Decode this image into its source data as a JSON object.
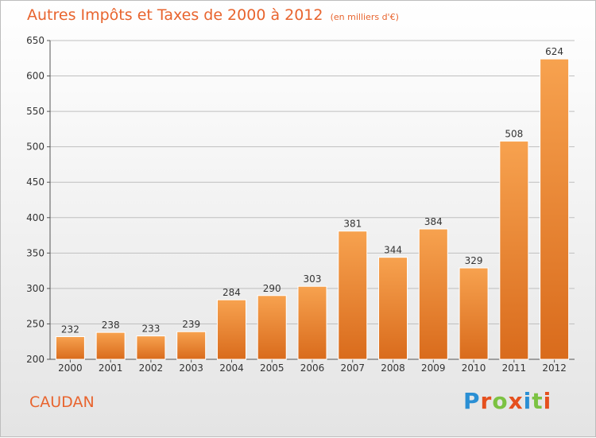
{
  "header": {
    "title": "Autres Impôts et Taxes de 2000 à 2012",
    "subtitle": "(en milliers d'€)"
  },
  "footer": {
    "town": "CAUDAN",
    "logo_text": "Proxiti",
    "logo_letters": [
      "P",
      "r",
      "o",
      "x",
      "i",
      "t",
      "i"
    ],
    "logo_colors": [
      "#2a8fd4",
      "#e5501e",
      "#7cc242",
      "#e5501e",
      "#2a8fd4",
      "#7cc242",
      "#e5501e"
    ]
  },
  "colors": {
    "bar_top": "#f7a24f",
    "bar_bottom": "#d96b1c",
    "accent": "#e8642e",
    "grid": "#bfbfbf",
    "text": "#333333"
  },
  "chart_data": {
    "type": "bar",
    "title": "Autres Impôts et Taxes de 2000 à 2012",
    "subtitle": "(en milliers d'€)",
    "xlabel": "",
    "ylabel": "",
    "categories": [
      "2000",
      "2001",
      "2002",
      "2003",
      "2004",
      "2005",
      "2006",
      "2007",
      "2008",
      "2009",
      "2010",
      "2011",
      "2012"
    ],
    "values": [
      232,
      238,
      233,
      239,
      284,
      290,
      303,
      381,
      344,
      384,
      329,
      508,
      624
    ],
    "data_labels": [
      "232",
      "238",
      "233",
      "239",
      "284",
      "290",
      "303",
      "381",
      "344",
      "384",
      "329",
      "508",
      "624"
    ],
    "ylim": [
      200,
      650
    ],
    "yticks": [
      200,
      250,
      300,
      350,
      400,
      450,
      500,
      550,
      600,
      650
    ],
    "ytick_labels": [
      "200",
      "250",
      "300",
      "350",
      "400",
      "450",
      "500",
      "550",
      "600",
      "650"
    ],
    "grid": true,
    "legend": "none"
  }
}
